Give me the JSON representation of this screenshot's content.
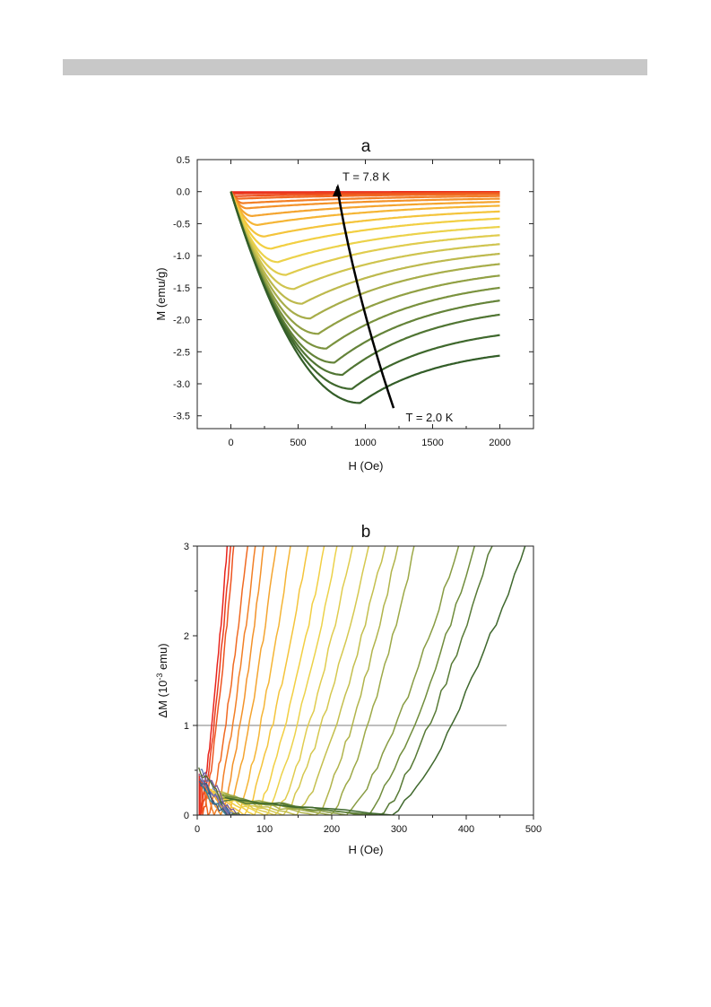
{
  "chart_data": [
    {
      "panel": "a",
      "type": "line",
      "title": "a",
      "xlabel": "H (Oe)",
      "ylabel": "M (emu/g)",
      "xlim": [
        -250,
        2250
      ],
      "ylim": [
        -3.7,
        0.5
      ],
      "xticks": [
        0,
        500,
        1000,
        1500,
        2000
      ],
      "xtick_labels": [
        "0",
        "500",
        "1000",
        "1500",
        "2000"
      ],
      "yticks": [
        0.5,
        0.0,
        -0.5,
        -1.0,
        -1.5,
        -2.0,
        -2.5,
        -3.0,
        -3.5
      ],
      "ytick_labels": [
        "0.5",
        "0.0",
        "-0.5",
        "-1.0",
        "-1.5",
        "-2.0",
        "-2.5",
        "-3.0",
        "-3.5"
      ],
      "grid": false,
      "annotations": [
        {
          "text": "T = 7.8 K",
          "x": 830,
          "y": 0.23
        },
        {
          "text": "T = 2.0 K",
          "x": 1300,
          "y": -3.53
        }
      ],
      "arrow_path": [
        [
          1210,
          -3.38
        ],
        [
          1060,
          -2.45
        ],
        [
          880,
          -1.1
        ],
        [
          790,
          0.08
        ]
      ],
      "series": [
        {
          "Hmin": 10,
          "Mmin": -0.01,
          "Mend": -0.005,
          "color": "#e8231b"
        },
        {
          "Hmin": 20,
          "Mmin": -0.03,
          "Mend": -0.01,
          "color": "#eb3b1d"
        },
        {
          "Hmin": 40,
          "Mmin": -0.07,
          "Mend": -0.02,
          "color": "#ee531f"
        },
        {
          "Hmin": 60,
          "Mmin": -0.11,
          "Mend": -0.04,
          "color": "#f06a22"
        },
        {
          "Hmin": 90,
          "Mmin": -0.18,
          "Mend": -0.07,
          "color": "#f27f26"
        },
        {
          "Hmin": 120,
          "Mmin": -0.26,
          "Mend": -0.11,
          "color": "#f3922a"
        },
        {
          "Hmin": 160,
          "Mmin": -0.38,
          "Mend": -0.16,
          "color": "#f4a42f"
        },
        {
          "Hmin": 200,
          "Mmin": -0.52,
          "Mend": -0.22,
          "color": "#f5b535"
        },
        {
          "Hmin": 250,
          "Mmin": -0.7,
          "Mend": -0.31,
          "color": "#f4c43b"
        },
        {
          "Hmin": 300,
          "Mmin": -0.89,
          "Mend": -0.42,
          "color": "#f2cf42"
        },
        {
          "Hmin": 350,
          "Mmin": -1.1,
          "Mend": -0.55,
          "color": "#ecd24a"
        },
        {
          "Hmin": 410,
          "Mmin": -1.3,
          "Mend": -0.68,
          "color": "#e0cc4e"
        },
        {
          "Hmin": 470,
          "Mmin": -1.52,
          "Mend": -0.82,
          "color": "#cfc44f"
        },
        {
          "Hmin": 530,
          "Mmin": -1.75,
          "Mend": -0.97,
          "color": "#bdb94d"
        },
        {
          "Hmin": 590,
          "Mmin": -1.98,
          "Mend": -1.13,
          "color": "#a7ad49"
        },
        {
          "Hmin": 650,
          "Mmin": -2.22,
          "Mend": -1.31,
          "color": "#91a044"
        },
        {
          "Hmin": 710,
          "Mmin": -2.45,
          "Mend": -1.5,
          "color": "#7a923e"
        },
        {
          "Hmin": 770,
          "Mmin": -2.67,
          "Mend": -1.7,
          "color": "#648339"
        },
        {
          "Hmin": 830,
          "Mmin": -2.86,
          "Mend": -1.92,
          "color": "#507533"
        },
        {
          "Hmin": 900,
          "Mmin": -3.08,
          "Mend": -2.24,
          "color": "#3f682d"
        },
        {
          "Hmin": 960,
          "Mmin": -3.3,
          "Mend": -2.56,
          "color": "#335d28"
        }
      ]
    },
    {
      "panel": "b",
      "type": "line",
      "title": "b",
      "xlabel": "H (Oe)",
      "ylabel_prefix": "ΔM (10",
      "ylabel_sup": "-3",
      "ylabel_suffix": " emu)",
      "xlim": [
        0,
        500
      ],
      "ylim": [
        0,
        3
      ],
      "xticks": [
        0,
        100,
        200,
        300,
        400,
        500
      ],
      "xtick_labels": [
        "0",
        "100",
        "200",
        "300",
        "400",
        "500"
      ],
      "yticks": [
        0,
        1,
        2,
        3
      ],
      "ytick_labels": [
        "0",
        "1",
        "2",
        "3"
      ],
      "grid": false,
      "threshold": {
        "y": 1.0,
        "x": [
          0,
          460
        ],
        "color": "#a8a8a8"
      },
      "series": [
        {
          "x0": 3,
          "y0": 0.45,
          "xb": 3,
          "x3": 45,
          "color": "#e8231b"
        },
        {
          "x0": 5,
          "y0": 0.4,
          "xb": 5,
          "x3": 50,
          "color": "#eb3b1d"
        },
        {
          "x0": 7,
          "y0": 0.38,
          "xb": 8,
          "x3": 55,
          "color": "#ee531f"
        },
        {
          "x0": 9,
          "y0": 0.35,
          "xb": 16,
          "x3": 75,
          "color": "#f06a22"
        },
        {
          "x0": 11,
          "y0": 0.32,
          "xb": 25,
          "x3": 87,
          "color": "#f27f26"
        },
        {
          "x0": 13,
          "y0": 0.3,
          "xb": 35,
          "x3": 100,
          "color": "#f3922a"
        },
        {
          "x0": 15,
          "y0": 0.3,
          "xb": 45,
          "x3": 118,
          "color": "#f4a42f"
        },
        {
          "x0": 17,
          "y0": 0.28,
          "xb": 58,
          "x3": 140,
          "color": "#f5b535"
        },
        {
          "x0": 19,
          "y0": 0.28,
          "xb": 70,
          "x3": 165,
          "color": "#f4c43b"
        },
        {
          "x0": 21,
          "y0": 0.26,
          "xb": 85,
          "x3": 190,
          "color": "#f2cf42"
        },
        {
          "x0": 23,
          "y0": 0.26,
          "xb": 100,
          "x3": 210,
          "color": "#ecd24a"
        },
        {
          "x0": 25,
          "y0": 0.25,
          "xb": 115,
          "x3": 232,
          "color": "#e0cc4e"
        },
        {
          "x0": 27,
          "y0": 0.24,
          "xb": 128,
          "x3": 257,
          "color": "#d5c84f"
        },
        {
          "x0": 29,
          "y0": 0.24,
          "xb": 148,
          "x3": 280,
          "color": "#c4bf4e"
        },
        {
          "x0": 31,
          "y0": 0.22,
          "xb": 175,
          "x3": 300,
          "color": "#b1b44b"
        },
        {
          "x0": 33,
          "y0": 0.22,
          "xb": 198,
          "x3": 325,
          "color": "#9da947"
        },
        {
          "x0": 35,
          "y0": 0.2,
          "xb": 222,
          "x3": 390,
          "color": "#889c43"
        },
        {
          "x0": 37,
          "y0": 0.2,
          "xb": 248,
          "x3": 415,
          "color": "#708d3c"
        },
        {
          "x0": 39,
          "y0": 0.18,
          "xb": 270,
          "x3": 440,
          "color": "#577a35"
        },
        {
          "x0": 41,
          "y0": 0.18,
          "xb": 290,
          "x3": 490,
          "color": "#3f682d"
        }
      ],
      "noise_colors": [
        "#4d6fa0",
        "#2f4f8a",
        "#5a7ab5",
        "#7a5a9a",
        "#3a8a9a",
        "#556b2f",
        "#8a6fb0",
        "#3d5a80"
      ]
    }
  ]
}
